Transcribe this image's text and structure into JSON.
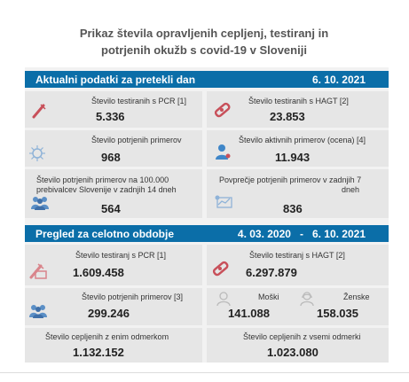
{
  "title": {
    "line1": "Prikaz števila opravljenih cepljenj, testiranj in",
    "line2": "potrjenih okužb s covid-19 v Sloveniji"
  },
  "section1": {
    "heading": "Aktualni podatki za pretekli dan",
    "date": "6. 10. 2021",
    "pcr_label": "Število testiranih s PCR [1]",
    "pcr_value": "5.336",
    "hagt_label": "Število testiranih s HAGT [2]",
    "hagt_value": "23.853",
    "confirmed_label": "Število potrjenih primerov",
    "confirmed_value": "968",
    "active_label": "Število aktivnih primerov (ocena) [4]",
    "active_value": "11.943",
    "per100k_label1": "Število potrjenih primerov na 100.000",
    "per100k_label2": "prebivalcev Slovenije v zadnjih 14 dneh",
    "per100k_value": "564",
    "avg7_label1": "Povprečje potrjenih primerov v zadnjih 7",
    "avg7_label2": "dneh",
    "avg7_value": "836"
  },
  "section2": {
    "heading": "Pregled za celotno obdobje",
    "date_range": "4. 03. 2020   -   6. 10. 2021",
    "pcr_label": "Število testiranj s PCR [1]",
    "pcr_value": "1.609.458",
    "hagt_label": "Število testiranj s HAGT [2]",
    "hagt_value": "6.297.879",
    "confirmed_label": "Število potrjenih primerov [3]",
    "confirmed_value": "299.246",
    "men_label": "Moški",
    "men_value": "141.088",
    "women_label": "Ženske",
    "women_value": "158.035",
    "dose1_label": "Število cepljenih z enim odmerkom",
    "dose1_value": "1.132.152",
    "all_doses_label": "Število cepljenih z vsemi odmerki",
    "all_doses_value": "1.023.080"
  },
  "colors": {
    "band": "#0b6ea8",
    "card": "#e6e6e6",
    "icon_red": "#c8505a",
    "icon_blue": "#3f86c8"
  }
}
